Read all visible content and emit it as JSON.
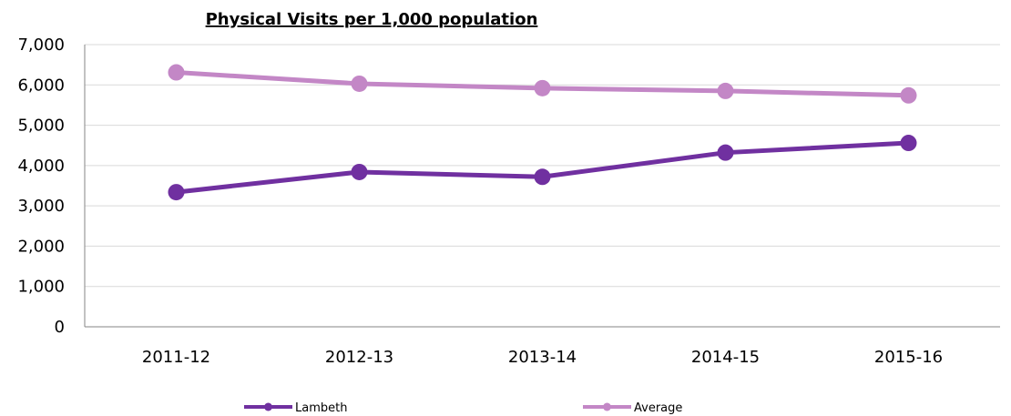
{
  "chart_data": {
    "type": "line",
    "title": "Physical Visits per 1,000 population",
    "xlabel": "",
    "ylabel": "",
    "categories": [
      "2011-12",
      "2012-13",
      "2013-14",
      "2014-15",
      "2015-16"
    ],
    "ylim": [
      0,
      7000
    ],
    "yticks": [
      "0",
      "1,000",
      "2,000",
      "3,000",
      "4,000",
      "5,000",
      "6,000",
      "7,000"
    ],
    "grid": true,
    "legend": "bottom",
    "series": [
      {
        "name": "Lambeth",
        "color": "#7030a0",
        "values": [
          3340,
          3840,
          3720,
          4320,
          4560
        ]
      },
      {
        "name": "Average",
        "color": "#c387c6",
        "values": [
          6310,
          6030,
          5920,
          5850,
          5740
        ]
      }
    ]
  }
}
